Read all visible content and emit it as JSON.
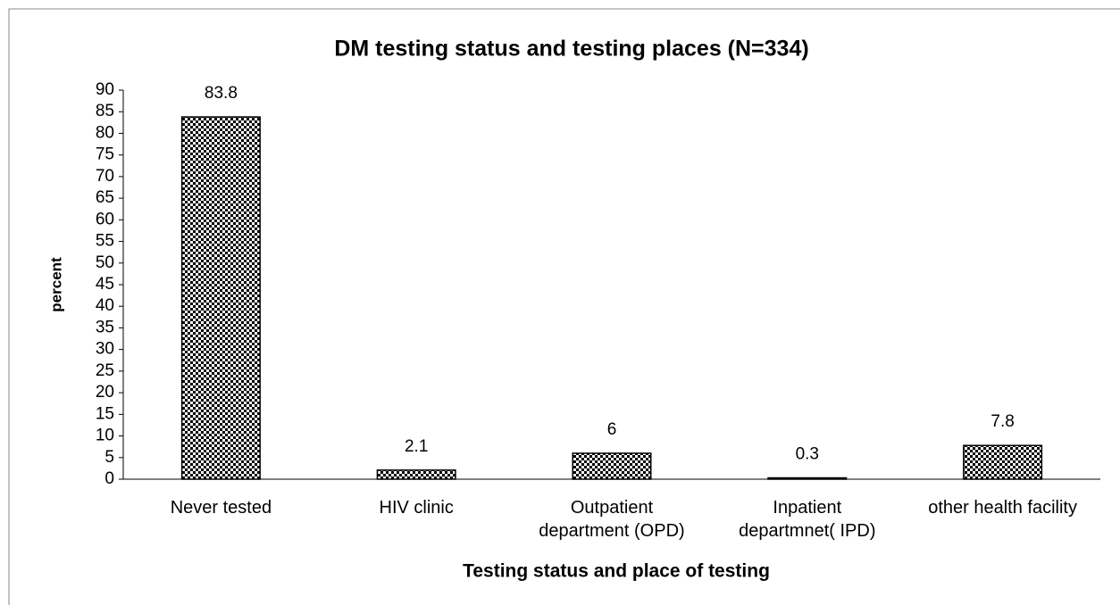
{
  "chart_data": {
    "type": "bar",
    "title": "DM testing status and testing places (N=334)",
    "x_label": "Testing status and place of testing",
    "y_label": "percent",
    "categories": [
      "Never tested",
      "HIV clinic",
      "Outpatient department (OPD)",
      "Inpatient departmnet( IPD)",
      "other health facility"
    ],
    "values": [
      83.8,
      2.1,
      6,
      0.3,
      7.8
    ],
    "color": "#000000",
    "ylim": [
      0,
      90
    ],
    "yticks": [
      0,
      5,
      10,
      15,
      20,
      25,
      30,
      35,
      40,
      45,
      50,
      55,
      60,
      65,
      70,
      75,
      80,
      85,
      90
    ],
    "grid": false
  }
}
